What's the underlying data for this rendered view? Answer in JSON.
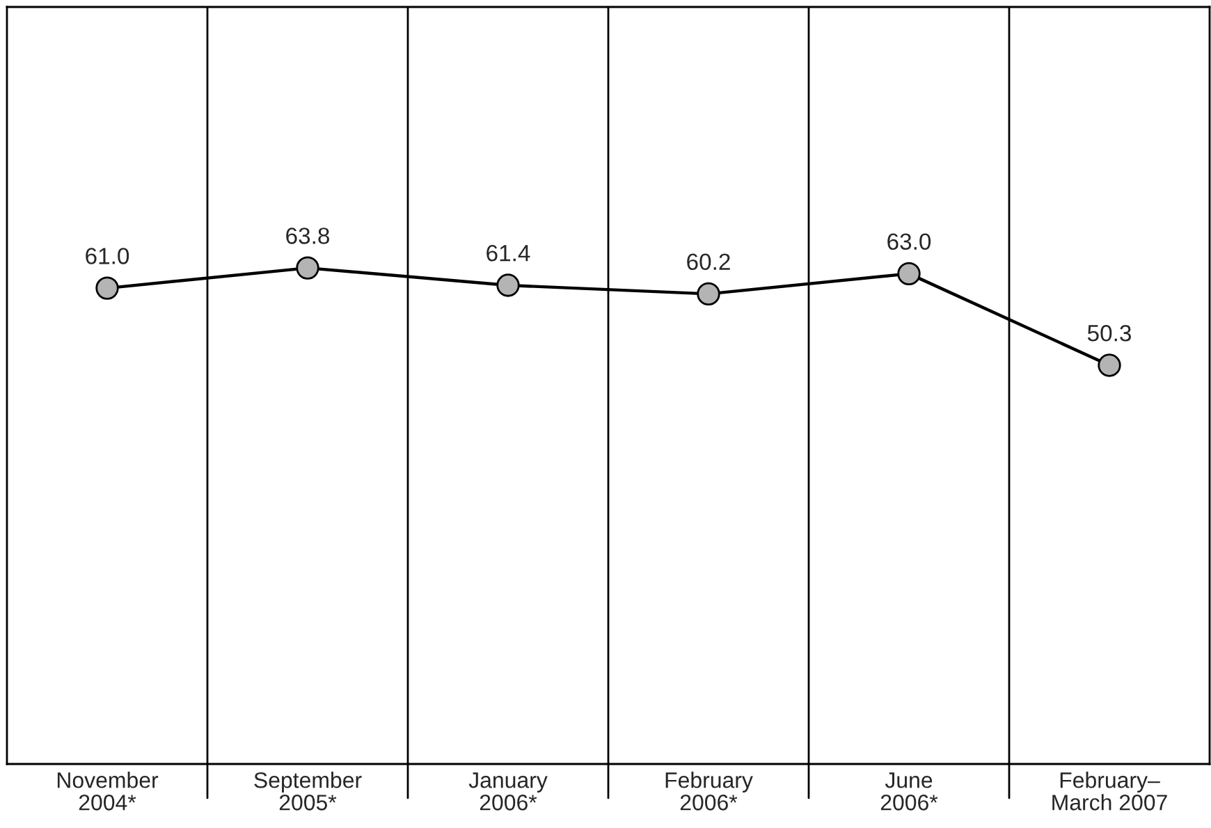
{
  "chart_data": {
    "type": "line",
    "categories": [
      "November\n2004*",
      "September\n2005*",
      "January\n2006*",
      "February\n2006*",
      "June\n2006*",
      "February–\nMarch 2007"
    ],
    "series": [
      {
        "color": "#000000",
        "values": [
          61.0,
          63.8,
          61.4,
          60.2,
          63.0,
          50.3
        ],
        "value_labels": [
          "61.0",
          "63.8",
          "61.4",
          "60.2",
          "63.0",
          "50.3"
        ]
      }
    ],
    "marker": "circle",
    "line_style": "solid",
    "grid": "x",
    "legend": false,
    "tick_labels": "x",
    "ylim": [
      -5,
      100
    ]
  }
}
